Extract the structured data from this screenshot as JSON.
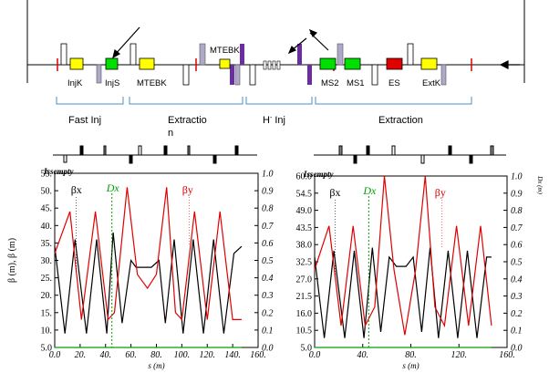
{
  "layout": {
    "elements": {
      "injk": "InjK",
      "injs": "InjS",
      "mtebk_left": "MTEBK",
      "mtebk_top": "MTEBK",
      "ms2": "MS2",
      "ms1": "MS1",
      "es": "ES",
      "extk": "ExtK"
    },
    "sections": {
      "fast_inj": "Fast Inj",
      "extraction_left_line1": "Extractio",
      "extraction_left_line2": "n",
      "h_inj_prefix": "H",
      "h_inj_sup": "-",
      "h_inj_suffix": " Inj",
      "extraction_right": "Extraction"
    },
    "colors": {
      "kicker": "#ffff00",
      "septum": "#00e000",
      "es": "#e00000",
      "bend": "#6a2ea0",
      "quad": "#b0a8c8",
      "bracket": "#4a90c0"
    }
  },
  "chart_data": [
    {
      "type": "line",
      "ylabel": "β (m), β (m)",
      "xlabel": "s (m)",
      "corner_label": "Issempty",
      "xlim": [
        0,
        160
      ],
      "ylim": [
        5,
        55
      ],
      "y2lim": [
        0,
        1.0
      ],
      "x_ticks": [
        "0.0",
        "20.",
        "40.",
        "60.",
        "80.",
        "100.",
        "120.",
        "140.",
        "160."
      ],
      "y_ticks": [
        "5.0",
        "10.",
        "15.",
        "20.",
        "25.",
        "30.",
        "35.",
        "40.",
        "45.",
        "50.",
        "55."
      ],
      "y2_ticks": [
        "0.0",
        "0.1",
        "0.2",
        "0.3",
        "0.4",
        "0.5",
        "0.6",
        "0.7",
        "0.8",
        "0.9",
        "1.0"
      ],
      "series": [
        {
          "name": "βx",
          "color": "#000000",
          "points": [
            [
              0,
              34
            ],
            [
              8,
              9
            ],
            [
              16,
              36
            ],
            [
              25,
              9
            ],
            [
              33,
              36
            ],
            [
              41,
              9
            ],
            [
              46,
              38
            ],
            [
              53,
              12
            ],
            [
              60,
              30
            ],
            [
              64,
              28
            ],
            [
              70,
              28
            ],
            [
              76,
              28
            ],
            [
              82,
              30
            ],
            [
              87,
              12
            ],
            [
              94,
              36
            ],
            [
              101,
              9
            ],
            [
              109,
              36
            ],
            [
              117,
              9
            ],
            [
              125,
              36
            ],
            [
              133,
              9
            ],
            [
              141,
              32
            ],
            [
              147,
              34
            ]
          ]
        },
        {
          "name": "βy",
          "color": "#e00000",
          "points": [
            [
              0,
              32
            ],
            [
              12,
              44
            ],
            [
              21,
              13
            ],
            [
              32,
              44
            ],
            [
              42,
              13
            ],
            [
              47,
              15
            ],
            [
              57,
              51
            ],
            [
              65,
              26
            ],
            [
              73,
              22
            ],
            [
              80,
              26
            ],
            [
              88,
              51
            ],
            [
              95,
              15
            ],
            [
              100,
              13
            ],
            [
              110,
              44
            ],
            [
              120,
              13
            ],
            [
              130,
              44
            ],
            [
              140,
              13
            ],
            [
              147,
              13
            ]
          ]
        },
        {
          "name": "Dx",
          "color": "#00a000",
          "points": [
            [
              0,
              0
            ],
            [
              147,
              0
            ]
          ]
        }
      ],
      "labels": {
        "bx": "βx",
        "by": "βy",
        "dx": "Dx"
      },
      "label_x": {
        "bx": 17,
        "by": 106,
        "dx": 45
      }
    },
    {
      "type": "line",
      "ylabel": "",
      "y2label": "Dx (m)",
      "xlabel": "s (m)",
      "corner_label": "Issempty",
      "xlim": [
        0,
        160
      ],
      "ylim": [
        5,
        60
      ],
      "y2lim": [
        0,
        1.0
      ],
      "x_ticks": [
        "0.0",
        "40.",
        "80.",
        "120.",
        "160."
      ],
      "y_ticks": [
        "5.0",
        "10.5",
        "16.0",
        "21.5",
        "27.0",
        "32.5",
        "38.0",
        "43.5",
        "49.0",
        "54.5",
        "60.0"
      ],
      "y2_ticks": [
        "0.0",
        "0.1",
        "0.2",
        "0.3",
        "0.4",
        "0.5",
        "0.6",
        "0.7",
        "0.8",
        "0.9",
        "1.0"
      ],
      "series": [
        {
          "name": "βx",
          "color": "#000000",
          "points": [
            [
              0,
              34
            ],
            [
              8,
              8
            ],
            [
              16,
              36
            ],
            [
              25,
              8
            ],
            [
              33,
              36
            ],
            [
              41,
              8
            ],
            [
              48,
              37
            ],
            [
              55,
              10
            ],
            [
              62,
              34
            ],
            [
              68,
              31
            ],
            [
              76,
              31
            ],
            [
              82,
              34
            ],
            [
              89,
              10
            ],
            [
              96,
              37
            ],
            [
              103,
              8
            ],
            [
              111,
              36
            ],
            [
              119,
              8
            ],
            [
              127,
              36
            ],
            [
              135,
              8
            ],
            [
              143,
              34
            ],
            [
              147,
              34
            ]
          ]
        },
        {
          "name": "βy",
          "color": "#e00000",
          "points": [
            [
              0,
              30
            ],
            [
              12,
              44
            ],
            [
              22,
              12
            ],
            [
              32,
              44
            ],
            [
              42,
              12
            ],
            [
              50,
              18
            ],
            [
              58,
              60
            ],
            [
              66,
              30
            ],
            [
              75,
              9
            ],
            [
              84,
              30
            ],
            [
              92,
              60
            ],
            [
              100,
              18
            ],
            [
              108,
              12
            ],
            [
              118,
              44
            ],
            [
              128,
              12
            ],
            [
              138,
              44
            ],
            [
              147,
              12
            ]
          ]
        },
        {
          "name": "Dx",
          "color": "#00a000",
          "points": [
            [
              0,
              0
            ],
            [
              147,
              0
            ]
          ]
        }
      ],
      "labels": {
        "bx": "βx",
        "by": "βy",
        "dx": "Dx"
      },
      "label_x": {
        "bx": 17,
        "by": 106,
        "dx": 45
      }
    }
  ]
}
